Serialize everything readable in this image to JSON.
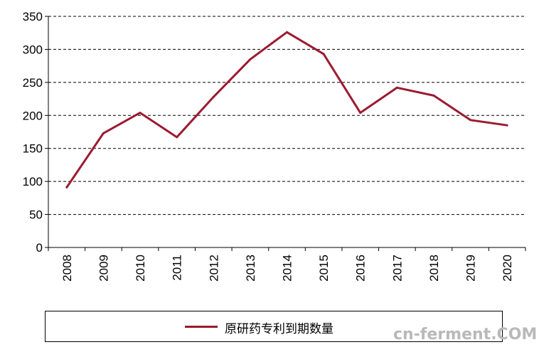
{
  "chart_data": {
    "type": "line",
    "categories": [
      "2008",
      "2009",
      "2010",
      "2011",
      "2012",
      "2013",
      "2014",
      "2015",
      "2016",
      "2017",
      "2018",
      "2019",
      "2020"
    ],
    "series": [
      {
        "name": "原研药专利到期数量",
        "values": [
          91,
          173,
          204,
          167,
          228,
          285,
          326,
          293,
          204,
          242,
          230,
          193,
          185
        ]
      }
    ],
    "ylim": [
      0,
      350
    ],
    "yticks": [
      0,
      50,
      100,
      150,
      200,
      250,
      300,
      350
    ],
    "grid": true,
    "legend": "bottom",
    "line_color": "#9b1b30"
  },
  "legend": {
    "label": "原研药专利到期数量"
  },
  "watermark": {
    "text": "cn-ferment.COM"
  }
}
